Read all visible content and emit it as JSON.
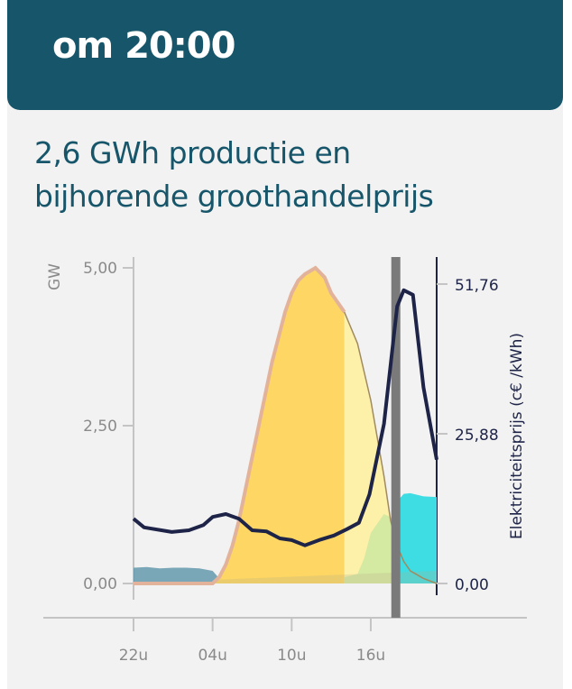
{
  "header": {
    "title": "om 20:00"
  },
  "heading": {
    "line1": "2,6 GWh productie en",
    "line2": "bijhorende groothandelprijs"
  },
  "colors": {
    "header": "#17566a",
    "solar_past": "#fdd663",
    "solar_forecast": "#fdf0a8",
    "solar_outline": "#e2b39a",
    "price": "#1e2448",
    "wind": "#5b93a7",
    "cyan": "#3ddde3",
    "green": "#cde8a0",
    "now_marker": "#7a7a7a"
  },
  "chart_data": {
    "type": "area",
    "title": "2,6 GWh productie en bijhorende groothandelprijs",
    "x_unit": "hours since 22u",
    "xlim": [
      0,
      23
    ],
    "x_ticks": [
      {
        "x": 0,
        "label": "22u"
      },
      {
        "x": 6,
        "label": "04u"
      },
      {
        "x": 12,
        "label": "10u"
      },
      {
        "x": 18,
        "label": "16u"
      }
    ],
    "ylabel_left": "GW",
    "ylim_left": [
      0,
      5
    ],
    "y_ticks_left": [
      {
        "v": 0,
        "label": "0,00"
      },
      {
        "v": 2.5,
        "label": "2,50"
      },
      {
        "v": 5,
        "label": "5,00"
      }
    ],
    "ylabel_right": "Elektriciteitsprijs (c€ /kWh)",
    "ylim_right": [
      0,
      51.76
    ],
    "y_ticks_right": [
      {
        "v": 0,
        "label": "0,00"
      },
      {
        "v": 25.88,
        "label": "25,88"
      },
      {
        "v": 51.76,
        "label": "51,76"
      }
    ],
    "now_x": 19.9,
    "forecast_start_x": 16,
    "series": [
      {
        "name": "wind",
        "axis": "left",
        "x": [
          0,
          1,
          2,
          3,
          4,
          5,
          6,
          6.5,
          7
        ],
        "values": [
          0.25,
          0.26,
          0.24,
          0.25,
          0.25,
          0.24,
          0.2,
          0.08,
          0
        ]
      },
      {
        "name": "green",
        "axis": "left",
        "x": [
          16,
          17,
          17.5,
          18,
          19,
          20,
          21,
          22,
          23
        ],
        "values": [
          0.1,
          0.15,
          0.4,
          0.8,
          1.1,
          1.0,
          0.3,
          0.15,
          0.05
        ]
      },
      {
        "name": "cyan",
        "axis": "left",
        "x": [
          20,
          20.5,
          21,
          22,
          23
        ],
        "values": [
          1.3,
          1.42,
          1.43,
          1.38,
          1.37
        ]
      },
      {
        "name": "solar",
        "axis": "left",
        "x": [
          0,
          6,
          6.5,
          7,
          7.5,
          8,
          8.5,
          9,
          9.5,
          10,
          10.5,
          11,
          11.5,
          12,
          12.5,
          13,
          13.8,
          14.5,
          15,
          16,
          17,
          18,
          19,
          19.5,
          20,
          20.5,
          21,
          22,
          23
        ],
        "values": [
          0,
          0,
          0.1,
          0.3,
          0.6,
          1.0,
          1.5,
          2.0,
          2.5,
          3.0,
          3.5,
          3.9,
          4.3,
          4.6,
          4.8,
          4.9,
          5.0,
          4.85,
          4.6,
          4.3,
          3.8,
          2.9,
          1.7,
          1.0,
          0.6,
          0.35,
          0.2,
          0.08,
          0
        ]
      },
      {
        "name": "price",
        "axis": "right",
        "x": [
          0,
          0.8,
          2.9,
          4.2,
          5.3,
          6,
          7,
          8,
          9,
          10.1,
          11.1,
          12,
          13,
          14.2,
          15.2,
          16.2,
          17.1,
          17.9,
          19,
          20,
          20.5,
          21.2,
          22,
          23
        ],
        "values": [
          11.2,
          9.7,
          8.9,
          9.2,
          10.1,
          11.5,
          12.0,
          11.2,
          9.2,
          9.0,
          7.8,
          7.5,
          6.6,
          7.6,
          8.3,
          9.4,
          10.5,
          15.4,
          27.6,
          47.9,
          50.7,
          49.9,
          33.9,
          21.4
        ]
      }
    ]
  }
}
